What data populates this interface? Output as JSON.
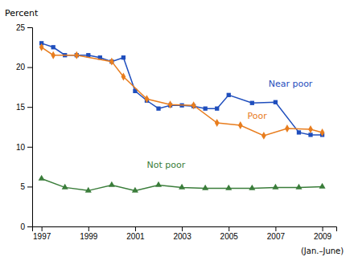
{
  "chart_data": {
    "type": "line",
    "ylabel": "Percent",
    "series": [
      {
        "name": "Near poor",
        "color": "#1f4ebd",
        "marker": "square",
        "x": [
          1997,
          1997.5,
          1998,
          1998.5,
          1999,
          1999.5,
          2000,
          2000.5,
          2001,
          2001.5,
          2002,
          2002.5,
          2003,
          2003.5,
          2004,
          2004.5,
          2005,
          2006,
          2007,
          2008,
          2008.5,
          2009
        ],
        "values": [
          23.0,
          22.5,
          21.5,
          21.5,
          21.5,
          21.2,
          20.7,
          21.2,
          17.0,
          15.8,
          14.8,
          15.2,
          15.2,
          15.1,
          14.8,
          14.8,
          16.5,
          15.5,
          15.6,
          11.8,
          11.5,
          11.5
        ]
      },
      {
        "name": "Poor",
        "color": "#e87d1e",
        "marker": "diamond",
        "x": [
          1997,
          1997.5,
          1998.5,
          2000,
          2000.5,
          2001.5,
          2002.5,
          2003.5,
          2004.5,
          2005.5,
          2006.5,
          2007.5,
          2008.5,
          2009
        ],
        "values": [
          22.5,
          21.5,
          21.5,
          20.7,
          18.8,
          16.0,
          15.3,
          15.2,
          13.0,
          12.7,
          11.4,
          12.3,
          12.2,
          11.8
        ]
      },
      {
        "name": "Not poor",
        "color": "#3a7d3a",
        "marker": "triangle",
        "x": [
          1997,
          1998,
          1999,
          2000,
          2001,
          2002,
          2003,
          2004,
          2005,
          2006,
          2007,
          2008,
          2009
        ],
        "values": [
          6.0,
          4.9,
          4.5,
          5.2,
          4.5,
          5.2,
          4.9,
          4.8,
          4.8,
          4.8,
          4.9,
          4.9,
          5.0
        ]
      }
    ],
    "xlim": [
      1996.6,
      2009.6
    ],
    "ylim": [
      0,
      25
    ],
    "xticks": [
      1997,
      1999,
      2001,
      2003,
      2005,
      2007,
      2009
    ],
    "yticks": [
      0,
      5,
      10,
      15,
      20,
      25
    ],
    "annotations": [
      {
        "text": "Near poor",
        "x": 2006.7,
        "y": 17.3,
        "color": "#1f4ebd"
      },
      {
        "text": "Poor",
        "x": 2005.8,
        "y": 13.3,
        "color": "#e87d1e"
      },
      {
        "text": "Not poor",
        "x": 2001.5,
        "y": 7.2,
        "color": "#3a7d3a"
      },
      {
        "text": "(Jan.–June)"
      }
    ]
  }
}
